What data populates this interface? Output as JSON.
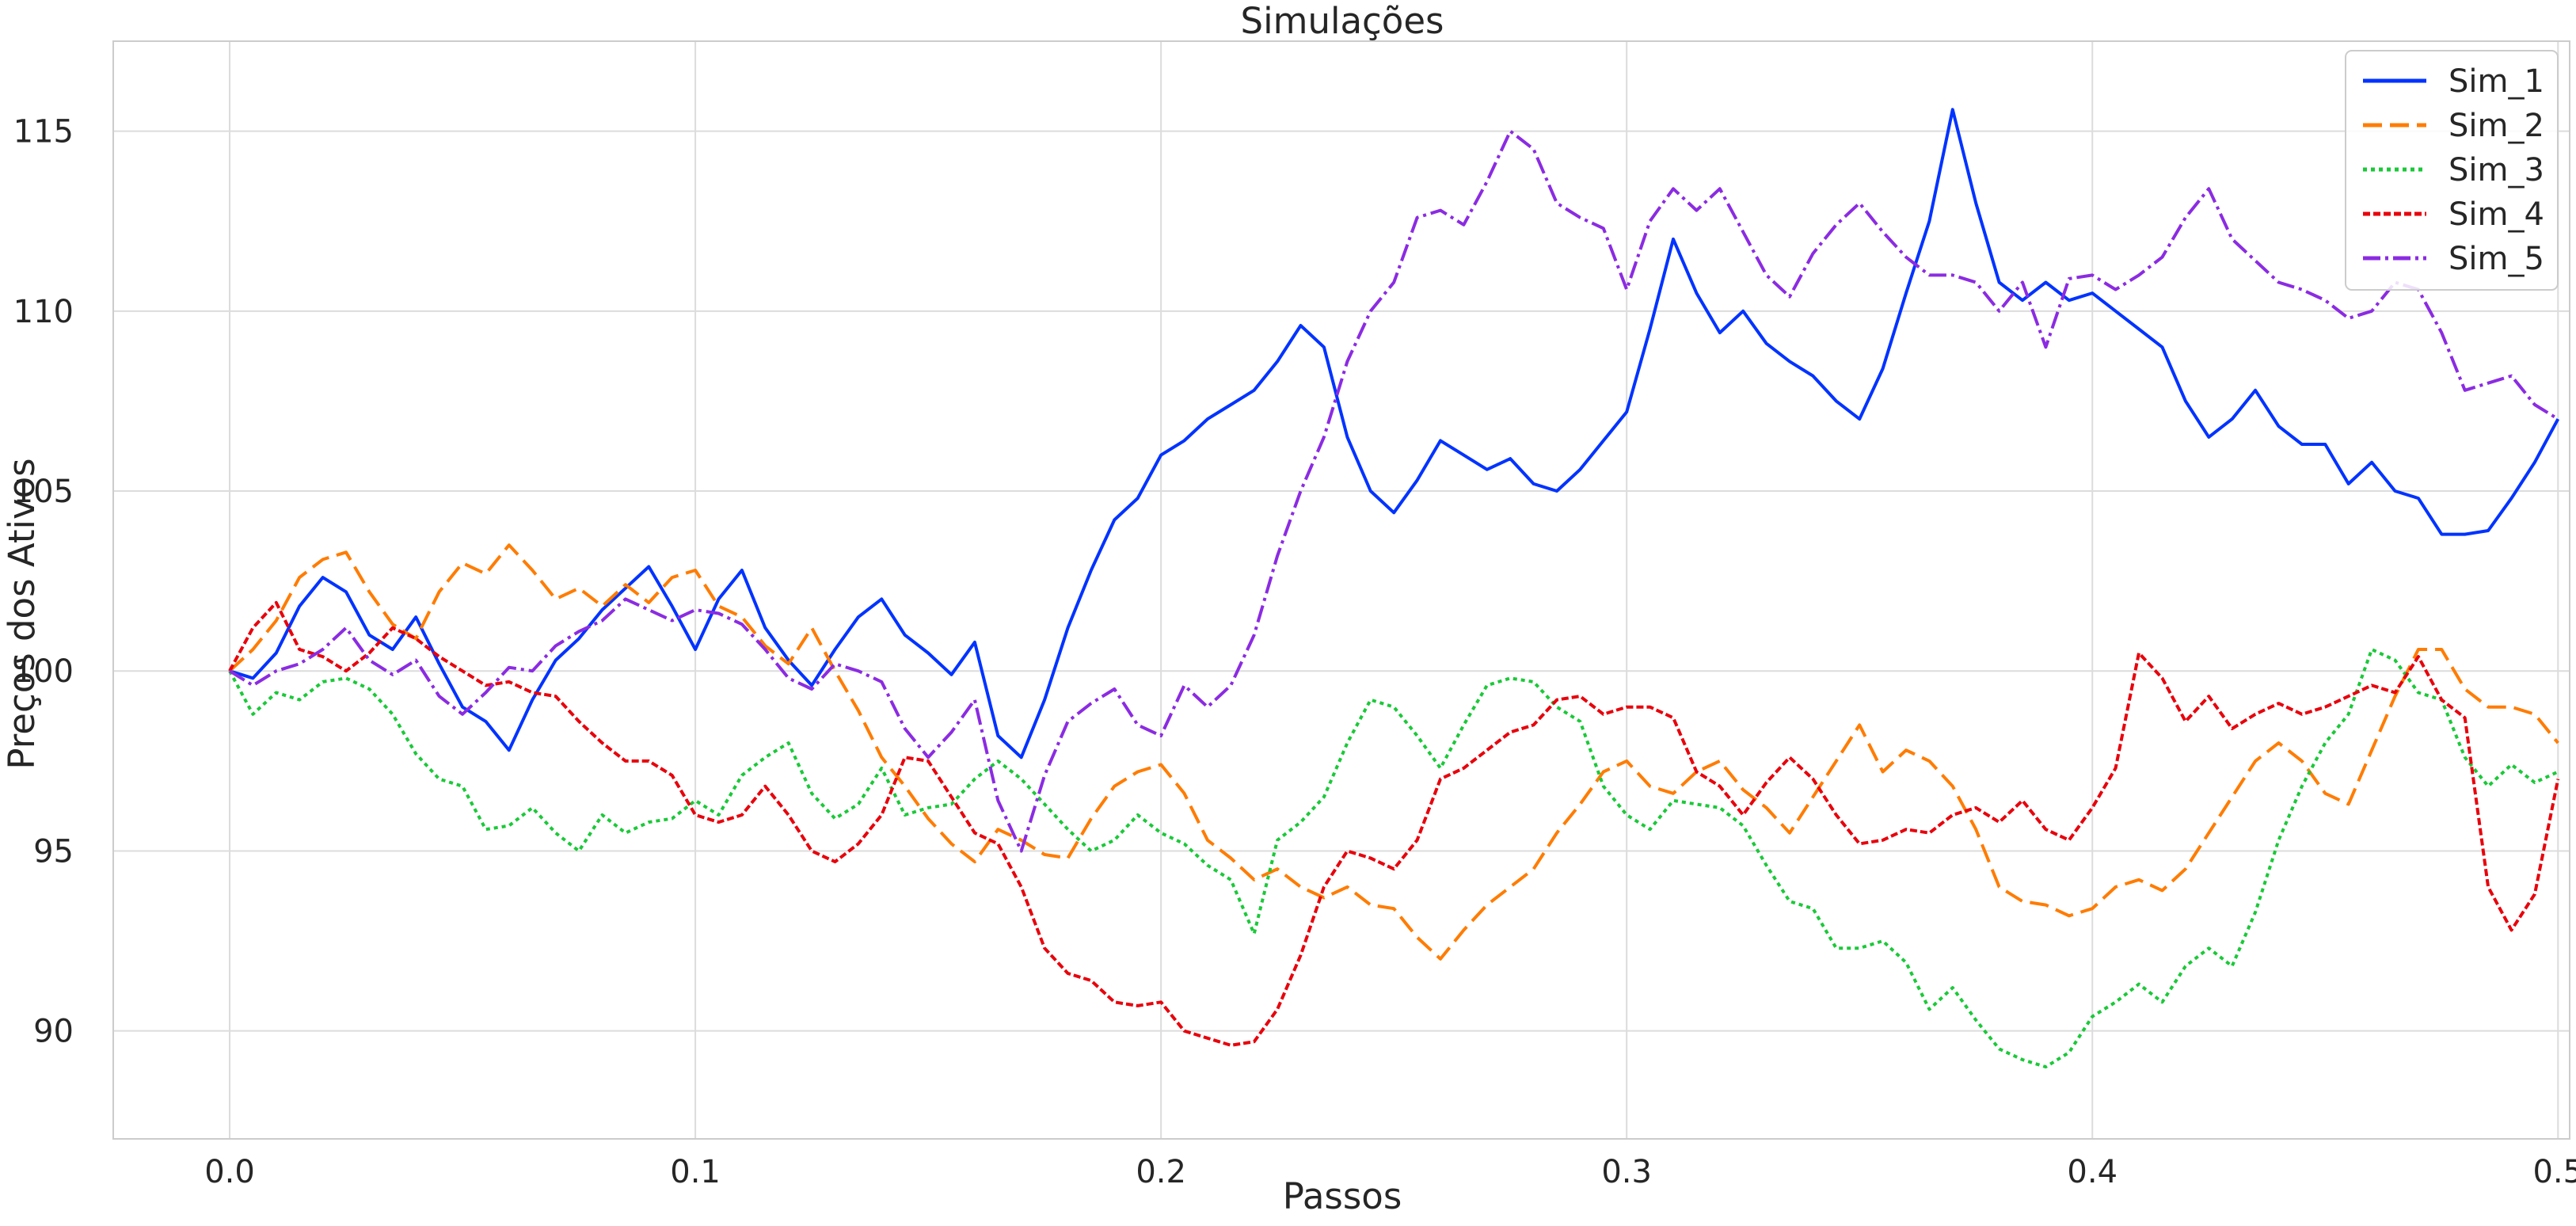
{
  "chart_data": {
    "type": "line",
    "title": "Simulações",
    "xlabel": "Passos",
    "ylabel": "Preços dos Ativos",
    "xlim": [
      -0.025,
      0.5025
    ],
    "ylim": [
      87.0,
      117.5
    ],
    "x_ticks": [
      0.0,
      0.1,
      0.2,
      0.3,
      0.4,
      0.5
    ],
    "x_tick_labels": [
      "0.0",
      "0.1",
      "0.2",
      "0.3",
      "0.4",
      "0.5"
    ],
    "y_ticks": [
      90,
      95,
      100,
      105,
      110,
      115
    ],
    "y_tick_labels": [
      "90",
      "95",
      "100",
      "105",
      "110",
      "115"
    ],
    "grid": true,
    "legend_position": "top-right",
    "colors": {
      "grid": "#dcdcdc",
      "axis": "#cccccc",
      "text": "#262626"
    },
    "series": [
      {
        "name": "Sim_1",
        "color": "#0033ff",
        "dash": "solid",
        "x": [
          0.0,
          0.005,
          0.01,
          0.015,
          0.02,
          0.025,
          0.03,
          0.035,
          0.04,
          0.045,
          0.05,
          0.055,
          0.06,
          0.065,
          0.07,
          0.075,
          0.08,
          0.085,
          0.09,
          0.095,
          0.1,
          0.105,
          0.11,
          0.115,
          0.12,
          0.125,
          0.13,
          0.135,
          0.14,
          0.145,
          0.15,
          0.155,
          0.16,
          0.165,
          0.17,
          0.175,
          0.18,
          0.185,
          0.19,
          0.195,
          0.2,
          0.205,
          0.21,
          0.215,
          0.22,
          0.225,
          0.23,
          0.235,
          0.24,
          0.245,
          0.25,
          0.255,
          0.26,
          0.265,
          0.27,
          0.275,
          0.28,
          0.285,
          0.29,
          0.295,
          0.3,
          0.305,
          0.31,
          0.315,
          0.32,
          0.325,
          0.33,
          0.335,
          0.34,
          0.345,
          0.35,
          0.355,
          0.36,
          0.365,
          0.37,
          0.375,
          0.38,
          0.385,
          0.39,
          0.395,
          0.4,
          0.405,
          0.41,
          0.415,
          0.42,
          0.425,
          0.43,
          0.435,
          0.44,
          0.445,
          0.45,
          0.455,
          0.46,
          0.465,
          0.47,
          0.475,
          0.48,
          0.485,
          0.49,
          0.495,
          0.5
        ],
        "y": [
          100.0,
          99.8,
          100.5,
          101.8,
          102.6,
          102.2,
          101.0,
          100.6,
          101.5,
          100.2,
          99.0,
          98.6,
          97.8,
          99.2,
          100.3,
          100.9,
          101.7,
          102.3,
          102.9,
          101.8,
          100.6,
          102.0,
          102.8,
          101.2,
          100.3,
          99.6,
          100.6,
          101.5,
          102.0,
          101.0,
          100.5,
          99.9,
          100.8,
          98.2,
          97.6,
          99.2,
          101.2,
          102.8,
          104.2,
          104.8,
          106.0,
          106.4,
          107.0,
          107.4,
          107.8,
          108.6,
          109.6,
          109.0,
          106.5,
          105.0,
          104.4,
          105.3,
          106.4,
          106.0,
          105.6,
          105.9,
          105.2,
          105.0,
          105.6,
          106.4,
          107.2,
          109.5,
          112.0,
          110.5,
          109.4,
          110.0,
          109.1,
          108.6,
          108.2,
          107.5,
          107.0,
          108.4,
          110.5,
          112.5,
          115.6,
          113.0,
          110.8,
          110.3,
          110.8,
          110.3,
          110.5,
          110.0,
          109.5,
          109.0,
          107.5,
          106.5,
          107.0,
          107.8,
          106.8,
          106.3,
          106.3,
          105.2,
          105.8,
          105.0,
          104.8,
          103.8,
          103.8,
          103.9,
          104.8,
          105.8,
          107.0
        ]
      },
      {
        "name": "Sim_2",
        "color": "#ff7c00",
        "dash": "24 10",
        "x": [
          0.0,
          0.005,
          0.01,
          0.015,
          0.02,
          0.025,
          0.03,
          0.035,
          0.04,
          0.045,
          0.05,
          0.055,
          0.06,
          0.065,
          0.07,
          0.075,
          0.08,
          0.085,
          0.09,
          0.095,
          0.1,
          0.105,
          0.11,
          0.115,
          0.12,
          0.125,
          0.13,
          0.135,
          0.14,
          0.145,
          0.15,
          0.155,
          0.16,
          0.165,
          0.17,
          0.175,
          0.18,
          0.185,
          0.19,
          0.195,
          0.2,
          0.205,
          0.21,
          0.215,
          0.22,
          0.225,
          0.23,
          0.235,
          0.24,
          0.245,
          0.25,
          0.255,
          0.26,
          0.265,
          0.27,
          0.275,
          0.28,
          0.285,
          0.29,
          0.295,
          0.3,
          0.305,
          0.31,
          0.315,
          0.32,
          0.325,
          0.33,
          0.335,
          0.34,
          0.345,
          0.35,
          0.355,
          0.36,
          0.365,
          0.37,
          0.375,
          0.38,
          0.385,
          0.39,
          0.395,
          0.4,
          0.405,
          0.41,
          0.415,
          0.42,
          0.425,
          0.43,
          0.435,
          0.44,
          0.445,
          0.45,
          0.455,
          0.46,
          0.465,
          0.47,
          0.475,
          0.48,
          0.485,
          0.49,
          0.495,
          0.5
        ],
        "y": [
          100.0,
          100.6,
          101.4,
          102.6,
          103.1,
          103.3,
          102.2,
          101.3,
          100.9,
          102.2,
          103.0,
          102.7,
          103.5,
          102.8,
          102.0,
          102.3,
          101.8,
          102.4,
          101.9,
          102.6,
          102.8,
          101.8,
          101.5,
          100.7,
          100.2,
          101.2,
          100.0,
          98.9,
          97.6,
          96.8,
          95.9,
          95.2,
          94.7,
          95.6,
          95.3,
          94.9,
          94.8,
          95.9,
          96.8,
          97.2,
          97.4,
          96.6,
          95.3,
          94.8,
          94.2,
          94.5,
          94.0,
          93.7,
          94.0,
          93.5,
          93.4,
          92.6,
          92.0,
          92.8,
          93.5,
          94.0,
          94.5,
          95.5,
          96.3,
          97.2,
          97.5,
          96.8,
          96.6,
          97.2,
          97.5,
          96.7,
          96.2,
          95.5,
          96.5,
          97.5,
          98.5,
          97.2,
          97.8,
          97.5,
          96.8,
          95.6,
          94.0,
          93.6,
          93.5,
          93.2,
          93.4,
          94.0,
          94.2,
          93.9,
          94.5,
          95.5,
          96.5,
          97.5,
          98.0,
          97.5,
          96.6,
          96.3,
          97.8,
          99.3,
          100.6,
          100.6,
          99.5,
          99.0,
          99.0,
          98.8,
          98.0
        ]
      },
      {
        "name": "Sim_3",
        "color": "#1ac938",
        "dash": "5 5",
        "x": [
          0.0,
          0.005,
          0.01,
          0.015,
          0.02,
          0.025,
          0.03,
          0.035,
          0.04,
          0.045,
          0.05,
          0.055,
          0.06,
          0.065,
          0.07,
          0.075,
          0.08,
          0.085,
          0.09,
          0.095,
          0.1,
          0.105,
          0.11,
          0.115,
          0.12,
          0.125,
          0.13,
          0.135,
          0.14,
          0.145,
          0.15,
          0.155,
          0.16,
          0.165,
          0.17,
          0.175,
          0.18,
          0.185,
          0.19,
          0.195,
          0.2,
          0.205,
          0.21,
          0.215,
          0.22,
          0.225,
          0.23,
          0.235,
          0.24,
          0.245,
          0.25,
          0.255,
          0.26,
          0.265,
          0.27,
          0.275,
          0.28,
          0.285,
          0.29,
          0.295,
          0.3,
          0.305,
          0.31,
          0.315,
          0.32,
          0.325,
          0.33,
          0.335,
          0.34,
          0.345,
          0.35,
          0.355,
          0.36,
          0.365,
          0.37,
          0.375,
          0.38,
          0.385,
          0.39,
          0.395,
          0.4,
          0.405,
          0.41,
          0.415,
          0.42,
          0.425,
          0.43,
          0.435,
          0.44,
          0.445,
          0.45,
          0.455,
          0.46,
          0.465,
          0.47,
          0.475,
          0.48,
          0.485,
          0.49,
          0.495,
          0.5
        ],
        "y": [
          100.0,
          98.8,
          99.4,
          99.2,
          99.7,
          99.8,
          99.5,
          98.8,
          97.7,
          97.0,
          96.8,
          95.6,
          95.7,
          96.2,
          95.5,
          95.0,
          96.0,
          95.5,
          95.8,
          95.9,
          96.4,
          96.0,
          97.1,
          97.6,
          98.0,
          96.6,
          95.9,
          96.3,
          97.3,
          96.0,
          96.2,
          96.3,
          97.0,
          97.5,
          97.0,
          96.3,
          95.6,
          95.0,
          95.3,
          96.0,
          95.5,
          95.2,
          94.6,
          94.2,
          92.7,
          95.3,
          95.8,
          96.5,
          98.0,
          99.2,
          99.0,
          98.2,
          97.3,
          98.5,
          99.6,
          99.8,
          99.7,
          99.0,
          98.6,
          96.8,
          96.0,
          95.6,
          96.4,
          96.3,
          96.2,
          95.7,
          94.6,
          93.6,
          93.4,
          92.3,
          92.3,
          92.5,
          91.9,
          90.6,
          91.2,
          90.3,
          89.5,
          89.2,
          89.0,
          89.4,
          90.4,
          90.8,
          91.3,
          90.8,
          91.8,
          92.3,
          91.8,
          93.3,
          95.3,
          96.8,
          98.0,
          98.8,
          100.6,
          100.3,
          99.4,
          99.2,
          97.6,
          96.8,
          97.4,
          96.9,
          97.2
        ]
      },
      {
        "name": "Sim_4",
        "color": "#e8000b",
        "dash": "9 4",
        "x": [
          0.0,
          0.005,
          0.01,
          0.015,
          0.02,
          0.025,
          0.03,
          0.035,
          0.04,
          0.045,
          0.05,
          0.055,
          0.06,
          0.065,
          0.07,
          0.075,
          0.08,
          0.085,
          0.09,
          0.095,
          0.1,
          0.105,
          0.11,
          0.115,
          0.12,
          0.125,
          0.13,
          0.135,
          0.14,
          0.145,
          0.15,
          0.155,
          0.16,
          0.165,
          0.17,
          0.175,
          0.18,
          0.185,
          0.19,
          0.195,
          0.2,
          0.205,
          0.21,
          0.215,
          0.22,
          0.225,
          0.23,
          0.235,
          0.24,
          0.245,
          0.25,
          0.255,
          0.26,
          0.265,
          0.27,
          0.275,
          0.28,
          0.285,
          0.29,
          0.295,
          0.3,
          0.305,
          0.31,
          0.315,
          0.32,
          0.325,
          0.33,
          0.335,
          0.34,
          0.345,
          0.35,
          0.355,
          0.36,
          0.365,
          0.37,
          0.375,
          0.38,
          0.385,
          0.39,
          0.395,
          0.4,
          0.405,
          0.41,
          0.415,
          0.42,
          0.425,
          0.43,
          0.435,
          0.44,
          0.445,
          0.45,
          0.455,
          0.46,
          0.465,
          0.47,
          0.475,
          0.48,
          0.485,
          0.49,
          0.495,
          0.5
        ],
        "y": [
          100.0,
          101.2,
          101.9,
          100.6,
          100.4,
          100.0,
          100.5,
          101.2,
          100.9,
          100.4,
          100.0,
          99.6,
          99.7,
          99.4,
          99.3,
          98.6,
          98.0,
          97.5,
          97.5,
          97.1,
          96.0,
          95.8,
          96.0,
          96.8,
          96.0,
          95.0,
          94.7,
          95.2,
          96.0,
          97.6,
          97.5,
          96.5,
          95.5,
          95.2,
          94.0,
          92.3,
          91.6,
          91.4,
          90.8,
          90.7,
          90.8,
          90.0,
          89.8,
          89.6,
          89.7,
          90.6,
          92.1,
          94.0,
          95.0,
          94.8,
          94.5,
          95.3,
          97.0,
          97.3,
          97.8,
          98.3,
          98.5,
          99.2,
          99.3,
          98.8,
          99.0,
          99.0,
          98.7,
          97.2,
          96.8,
          96.0,
          96.9,
          97.6,
          97.0,
          96.0,
          95.2,
          95.3,
          95.6,
          95.5,
          96.0,
          96.2,
          95.8,
          96.4,
          95.6,
          95.3,
          96.2,
          97.3,
          100.5,
          99.8,
          98.6,
          99.3,
          98.4,
          98.8,
          99.1,
          98.8,
          99.0,
          99.3,
          99.6,
          99.4,
          100.4,
          99.2,
          98.7,
          94.0,
          92.8,
          93.8,
          97.0
        ]
      },
      {
        "name": "Sim_5",
        "color": "#8b2be2",
        "dash": "22 6 4 6",
        "x": [
          0.0,
          0.005,
          0.01,
          0.015,
          0.02,
          0.025,
          0.03,
          0.035,
          0.04,
          0.045,
          0.05,
          0.055,
          0.06,
          0.065,
          0.07,
          0.075,
          0.08,
          0.085,
          0.09,
          0.095,
          0.1,
          0.105,
          0.11,
          0.115,
          0.12,
          0.125,
          0.13,
          0.135,
          0.14,
          0.145,
          0.15,
          0.155,
          0.16,
          0.165,
          0.17,
          0.175,
          0.18,
          0.185,
          0.19,
          0.195,
          0.2,
          0.205,
          0.21,
          0.215,
          0.22,
          0.225,
          0.23,
          0.235,
          0.24,
          0.245,
          0.25,
          0.255,
          0.26,
          0.265,
          0.27,
          0.275,
          0.28,
          0.285,
          0.29,
          0.295,
          0.3,
          0.305,
          0.31,
          0.315,
          0.32,
          0.325,
          0.33,
          0.335,
          0.34,
          0.345,
          0.35,
          0.355,
          0.36,
          0.365,
          0.37,
          0.375,
          0.38,
          0.385,
          0.39,
          0.395,
          0.4,
          0.405,
          0.41,
          0.415,
          0.42,
          0.425,
          0.43,
          0.435,
          0.44,
          0.445,
          0.45,
          0.455,
          0.46,
          0.465,
          0.47,
          0.475,
          0.48,
          0.485,
          0.49,
          0.495,
          0.5
        ],
        "y": [
          100.0,
          99.6,
          100.0,
          100.2,
          100.6,
          101.2,
          100.3,
          99.9,
          100.3,
          99.3,
          98.8,
          99.4,
          100.1,
          100.0,
          100.7,
          101.1,
          101.4,
          102.0,
          101.7,
          101.4,
          101.7,
          101.6,
          101.3,
          100.6,
          99.8,
          99.5,
          100.2,
          100.0,
          99.7,
          98.4,
          97.6,
          98.3,
          99.2,
          96.4,
          95.0,
          97.1,
          98.6,
          99.1,
          99.5,
          98.5,
          98.2,
          99.6,
          99.0,
          99.6,
          101.0,
          103.2,
          105.0,
          106.5,
          108.6,
          110.0,
          110.8,
          112.6,
          112.8,
          112.4,
          113.6,
          115.0,
          114.5,
          113.0,
          112.6,
          112.3,
          110.6,
          112.5,
          113.4,
          112.8,
          113.4,
          112.2,
          111.0,
          110.4,
          111.6,
          112.4,
          113.0,
          112.2,
          111.5,
          111.0,
          111.0,
          110.8,
          110.0,
          110.8,
          109.0,
          110.9,
          111.0,
          110.6,
          111.0,
          111.5,
          112.6,
          113.4,
          112.0,
          111.4,
          110.8,
          110.6,
          110.3,
          109.8,
          110.0,
          110.8,
          110.6,
          109.4,
          107.8,
          108.0,
          108.2,
          107.4,
          107.0
        ]
      }
    ]
  }
}
